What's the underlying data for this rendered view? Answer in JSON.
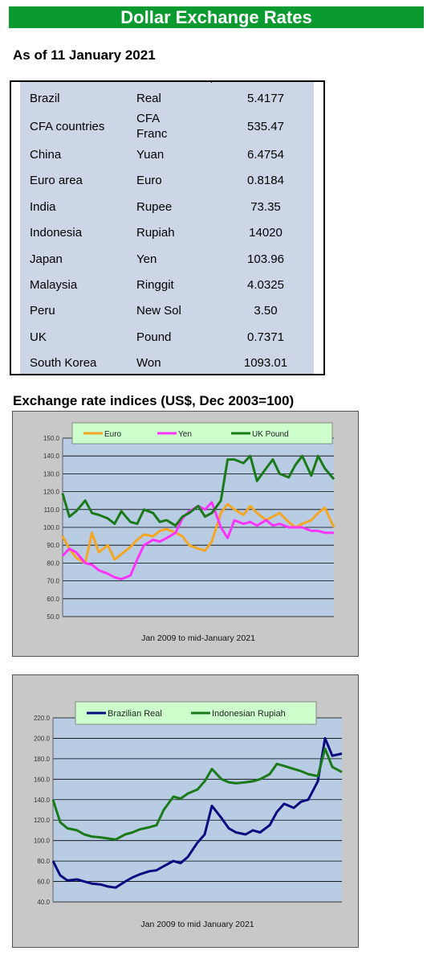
{
  "header": {
    "title": "Dollar Exchange Rates"
  },
  "as_of": "As of 11 January 2021",
  "rates": [
    {
      "country": "Brazil",
      "currency": "Real",
      "rate": "5.4177"
    },
    {
      "country": "CFA countries",
      "currency": "CFA\nFranc",
      "rate": "535.47"
    },
    {
      "country": "China",
      "currency": "Yuan",
      "rate": "6.4754"
    },
    {
      "country": "Euro area",
      "currency": "Euro",
      "rate": "0.8184"
    },
    {
      "country": "India",
      "currency": "Rupee",
      "rate": "73.35"
    },
    {
      "country": "Indonesia",
      "currency": "Rupiah",
      "rate": "14020"
    },
    {
      "country": "Japan",
      "currency": "Yen",
      "rate": "103.96"
    },
    {
      "country": "Malaysia",
      "currency": "Ringgit",
      "rate": "4.0325"
    },
    {
      "country": "Peru",
      "currency": "New Sol",
      "rate": "3.50"
    },
    {
      "country": "UK",
      "currency": "Pound",
      "rate": "0.7371"
    },
    {
      "country": "South Korea",
      "currency": "Won",
      "rate": "1093.01"
    }
  ],
  "indices_title": "Exchange rate indices (US$, Dec 2003=100)",
  "colors": {
    "euro": "#f5a623",
    "yen": "#ff33ff",
    "pound": "#1a7a1a",
    "real": "#0a0a80",
    "rupiah": "#1a7a1a",
    "banner": "#0b9a2f"
  },
  "chart_data": [
    {
      "type": "line",
      "xlabel": "Jan 2009  to mid-January 2021",
      "ylim": [
        50,
        150
      ],
      "yticks": [
        "150.0",
        "140.0",
        "130.0",
        "120.0",
        "110.0",
        "100.0",
        "90.0",
        "80.0",
        "70.0",
        "60.0",
        "50.0"
      ],
      "legend_position": "top",
      "series": [
        {
          "name": "Euro",
          "color": "#f5a623",
          "x": [
            2009.0,
            2009.3,
            2009.6,
            2010.0,
            2010.3,
            2010.6,
            2011.0,
            2011.3,
            2011.6,
            2012.0,
            2012.3,
            2012.6,
            2013.0,
            2013.3,
            2013.6,
            2014.0,
            2014.3,
            2014.6,
            2015.0,
            2015.3,
            2015.6,
            2016.0,
            2016.3,
            2016.6,
            2017.0,
            2017.3,
            2017.6,
            2018.0,
            2018.3,
            2018.6,
            2019.0,
            2019.3,
            2019.6,
            2020.0,
            2020.3,
            2020.6,
            2021.0
          ],
          "values": [
            95,
            88,
            83,
            80,
            97,
            86,
            90,
            82,
            85,
            89,
            93,
            96,
            95,
            98,
            99,
            97,
            95,
            90,
            88,
            87,
            92,
            108,
            113,
            110,
            107,
            112,
            108,
            104,
            106,
            108,
            103,
            100,
            102,
            104,
            108,
            111,
            100
          ]
        },
        {
          "name": "Yen",
          "color": "#ff33ff",
          "x": [
            2009.0,
            2009.3,
            2009.6,
            2010.0,
            2010.3,
            2010.6,
            2011.0,
            2011.3,
            2011.6,
            2012.0,
            2012.3,
            2012.6,
            2013.0,
            2013.3,
            2013.6,
            2014.0,
            2014.3,
            2014.6,
            2015.0,
            2015.3,
            2015.6,
            2016.0,
            2016.3,
            2016.6,
            2017.0,
            2017.3,
            2017.6,
            2018.0,
            2018.3,
            2018.6,
            2019.0,
            2019.3,
            2019.6,
            2020.0,
            2020.3,
            2020.6,
            2021.0
          ],
          "values": [
            84,
            88,
            86,
            80,
            79,
            76,
            74,
            72,
            71,
            73,
            82,
            90,
            93,
            92,
            94,
            97,
            105,
            109,
            112,
            110,
            114,
            100,
            94,
            104,
            102,
            103,
            101,
            104,
            101,
            102,
            100,
            100,
            100,
            98,
            98,
            97,
            97
          ]
        },
        {
          "name": "UK Pound",
          "color": "#1a7a1a",
          "x": [
            2009.0,
            2009.3,
            2009.6,
            2010.0,
            2010.3,
            2010.6,
            2011.0,
            2011.3,
            2011.6,
            2012.0,
            2012.3,
            2012.6,
            2013.0,
            2013.3,
            2013.6,
            2014.0,
            2014.3,
            2014.6,
            2015.0,
            2015.3,
            2015.6,
            2016.0,
            2016.3,
            2016.6,
            2017.0,
            2017.3,
            2017.6,
            2018.0,
            2018.3,
            2018.6,
            2019.0,
            2019.3,
            2019.6,
            2020.0,
            2020.3,
            2020.6,
            2021.0
          ],
          "values": [
            119,
            106,
            109,
            115,
            108,
            107,
            105,
            102,
            109,
            103,
            102,
            110,
            108,
            103,
            104,
            101,
            106,
            108,
            112,
            106,
            108,
            115,
            138,
            138,
            136,
            140,
            126,
            133,
            138,
            130,
            128,
            135,
            140,
            129,
            140,
            133,
            127
          ]
        }
      ]
    },
    {
      "type": "line",
      "xlabel": "Jan 2009  to mid January 2021",
      "ylim": [
        40,
        220
      ],
      "yticks": [
        "220.0",
        "200.0",
        "180.0",
        "160.0",
        "140.0",
        "120.0",
        "100.0",
        "80.0",
        "60.0",
        "40.0"
      ],
      "legend_position": "top",
      "series": [
        {
          "name": "Brazilian Real",
          "color": "#0a0a80",
          "x": [
            2009.0,
            2009.3,
            2009.6,
            2010.0,
            2010.3,
            2010.6,
            2011.0,
            2011.3,
            2011.6,
            2012.0,
            2012.3,
            2012.6,
            2013.0,
            2013.3,
            2013.6,
            2014.0,
            2014.3,
            2014.6,
            2015.0,
            2015.3,
            2015.6,
            2016.0,
            2016.3,
            2016.6,
            2017.0,
            2017.3,
            2017.6,
            2018.0,
            2018.3,
            2018.6,
            2019.0,
            2019.3,
            2019.6,
            2020.0,
            2020.3,
            2020.6,
            2021.0
          ],
          "values": [
            80,
            66,
            61,
            62,
            60,
            58,
            57,
            55,
            54,
            60,
            64,
            67,
            70,
            71,
            75,
            80,
            78,
            84,
            98,
            106,
            134,
            122,
            112,
            108,
            106,
            110,
            108,
            115,
            128,
            136,
            132,
            138,
            140,
            158,
            200,
            183,
            185
          ]
        },
        {
          "name": "Indonesian Rupiah",
          "color": "#1a7a1a",
          "x": [
            2009.0,
            2009.3,
            2009.6,
            2010.0,
            2010.3,
            2010.6,
            2011.0,
            2011.3,
            2011.6,
            2012.0,
            2012.3,
            2012.6,
            2013.0,
            2013.3,
            2013.6,
            2014.0,
            2014.3,
            2014.6,
            2015.0,
            2015.3,
            2015.6,
            2016.0,
            2016.3,
            2016.6,
            2017.0,
            2017.3,
            2017.6,
            2018.0,
            2018.3,
            2018.6,
            2019.0,
            2019.3,
            2019.6,
            2020.0,
            2020.3,
            2020.6,
            2021.0
          ],
          "values": [
            140,
            118,
            112,
            110,
            106,
            104,
            103,
            102,
            101,
            106,
            108,
            111,
            113,
            115,
            130,
            143,
            141,
            146,
            150,
            158,
            170,
            160,
            157,
            156,
            157,
            158,
            160,
            165,
            175,
            173,
            170,
            168,
            165,
            163,
            190,
            172,
            167
          ]
        }
      ]
    }
  ]
}
